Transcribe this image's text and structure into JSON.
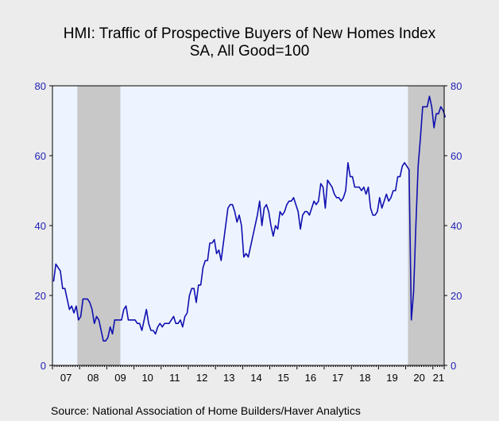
{
  "chart_data": {
    "type": "line",
    "title": "HMI: Traffic of Prospective Buyers of New Homes Index",
    "subtitle": "SA, All Good=100",
    "source": "Source:  National Association of Home Builders/Haver Analytics",
    "x_start": "2007-01",
    "x_end": "2021-05",
    "ylim": [
      0,
      80
    ],
    "yticks": [
      "0",
      "20",
      "40",
      "60",
      "80"
    ],
    "xtick_labels": [
      "07",
      "08",
      "09",
      "10",
      "11",
      "12",
      "13",
      "14",
      "15",
      "16",
      "17",
      "18",
      "19",
      "20",
      "21"
    ],
    "grid": false,
    "plot_background": "#eef4ff",
    "line_color": "#1010b0",
    "recession_color": "#c8c8c8",
    "recessions": [
      {
        "start": "2007-12",
        "end": "2009-06"
      },
      {
        "start": "2020-02",
        "end": "2021-05"
      }
    ],
    "series": [
      {
        "values": [
          24,
          29,
          28,
          27,
          22,
          22,
          19,
          16,
          17,
          15,
          17,
          13,
          14,
          19,
          19,
          19,
          18,
          16,
          12,
          14,
          13,
          10,
          7,
          7,
          8,
          11,
          9,
          13,
          13,
          13,
          13,
          16,
          17,
          13,
          13,
          13,
          13,
          12,
          12,
          10,
          13,
          16,
          12,
          10,
          10,
          9,
          11,
          12,
          11,
          12,
          12,
          12,
          13,
          14,
          12,
          12,
          13,
          11,
          14,
          15,
          20,
          22,
          22,
          18,
          23,
          23,
          28,
          30,
          30,
          35,
          35,
          36,
          32,
          33,
          30,
          35,
          40,
          45,
          46,
          46,
          44,
          41,
          43,
          40,
          31,
          32,
          31,
          34,
          37,
          40,
          43,
          47,
          40,
          45,
          46,
          44,
          40,
          37,
          40,
          39,
          44,
          43,
          44,
          46,
          47,
          47,
          48,
          46,
          44,
          39,
          43,
          44,
          44,
          43,
          45,
          47,
          46,
          47,
          52,
          51,
          45,
          53,
          52,
          51,
          49,
          48,
          48,
          47,
          48,
          50,
          58,
          54,
          54,
          51,
          51,
          51,
          50,
          51,
          49,
          51,
          45,
          43,
          43,
          44,
          48,
          45,
          47,
          49,
          47,
          48,
          50,
          50,
          54,
          54,
          57,
          58,
          57,
          56,
          13,
          21,
          40,
          57,
          65,
          74,
          74,
          74,
          77,
          74,
          68,
          72,
          72,
          74,
          73,
          71
        ]
      }
    ]
  }
}
